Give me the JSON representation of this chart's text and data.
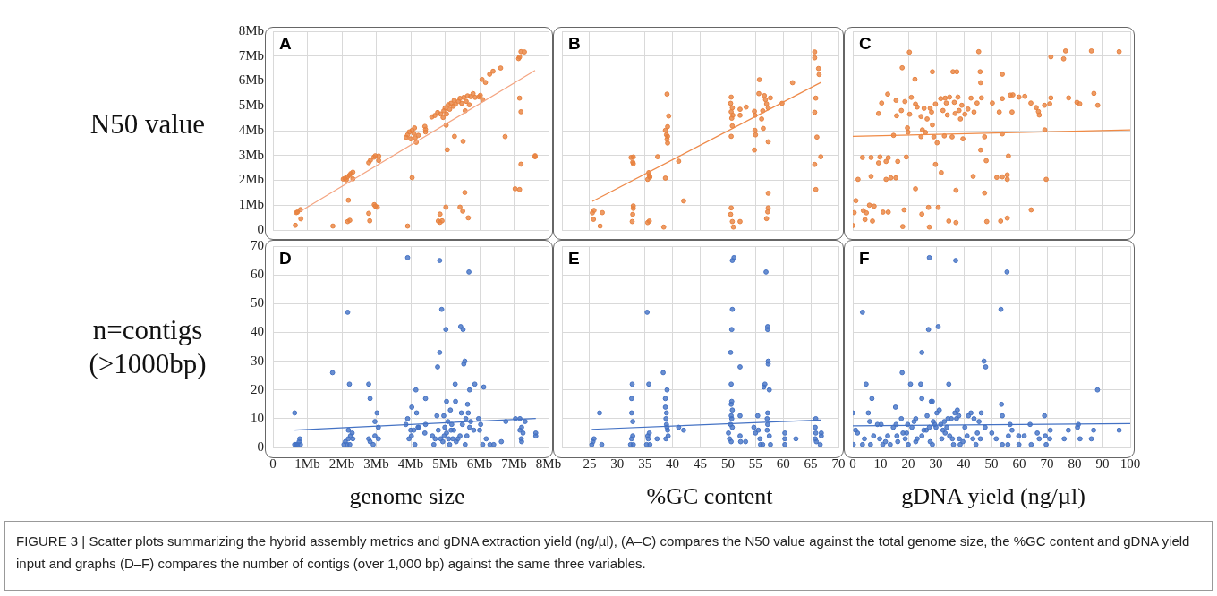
{
  "chart_data": [
    {
      "type": "scatter",
      "title": "A",
      "ylabel": "N50 value",
      "grid": true,
      "tick_labels": "y",
      "xlim": [
        0,
        8
      ],
      "xticks": [
        0,
        1,
        2,
        3,
        4,
        5,
        6,
        7,
        8
      ],
      "ylim": [
        0,
        8
      ],
      "yticks": [
        0,
        {
          "value": 1,
          "label": "1Mb"
        },
        {
          "value": 2,
          "label": "2Mb"
        },
        {
          "value": 3,
          "label": "3Mb"
        },
        {
          "value": 4,
          "label": "4Mb"
        },
        {
          "value": 5,
          "label": "5Mb"
        },
        {
          "value": 6,
          "label": "6Mb"
        },
        {
          "value": 7,
          "label": "7Mb"
        },
        {
          "value": 8,
          "label": "8Mb"
        }
      ],
      "annotations": [
        "FIGURE 3 | Scatter plots summarizing the hybrid assembly metrics and gDNA extraction yield (ng/µl), (A–C) compares the N50 value against the total genome size, the %GC content and gDNA yield input and graphs (D–F) compares the number of contigs (over 1,000 bp) against the same three variables."
      ],
      "series": [
        {
          "type": "scatter",
          "marker": "circle",
          "color": "#e8823f",
          "x": [
            0.65,
            0.68,
            0.71,
            0.8,
            0.81,
            1.74,
            2.04,
            2.09,
            2.13,
            2.16,
            2.22,
            2.26,
            2.32,
            2.32,
            2.19,
            2.17,
            2.23,
            2.78,
            2.81,
            2.78,
            2.83,
            2.93,
            2.97,
            3.07,
            3.07,
            2.94,
            2.97,
            3.03,
            3.91,
            3.87,
            3.91,
            3.96,
            4.0,
            4.04,
            4.09,
            4.11,
            4.13,
            4.16,
            4.22,
            4.04,
            4.41,
            4.43,
            4.43,
            4.61,
            4.7,
            4.78,
            4.87,
            4.96,
            4.94,
            5.0,
            5.04,
            5.09,
            5.13,
            5.17,
            5.23,
            5.26,
            5.3,
            5.39,
            5.43,
            5.48,
            5.54,
            5.61,
            5.65,
            5.7,
            5.74,
            5.81,
            5.87,
            5.98,
            6.02,
            6.09,
            6.07,
            6.17,
            6.29,
            6.39,
            6.61,
            7.13,
            7.16,
            7.2,
            7.3,
            7.16,
            7.2,
            7.2,
            7.16,
            7.03,
            7.61,
            7.61,
            6.74,
            5.06,
            5.27,
            5.52,
            5.58,
            5.03,
            5.02,
            5.43,
            5.51,
            5.57,
            5.67,
            4.85,
            4.8,
            4.85,
            4.91
          ],
          "values": [
            0.19,
            0.7,
            0.72,
            0.82,
            0.45,
            0.16,
            2.05,
            2.08,
            2.02,
            2.14,
            2.2,
            2.27,
            2.33,
            2.06,
            1.2,
            0.34,
            0.39,
            0.67,
            0.37,
            2.71,
            2.81,
            2.93,
            2.99,
            2.98,
            2.8,
            1.02,
            0.96,
            0.92,
            0.16,
            3.73,
            3.83,
            3.95,
            3.67,
            4.01,
            3.89,
            4.11,
            3.71,
            3.53,
            3.81,
            2.11,
            4.17,
            3.95,
            4.05,
            4.55,
            4.61,
            4.73,
            4.67,
            4.8,
            4.53,
            4.92,
            4.67,
            5.04,
            4.86,
            5.1,
            4.98,
            5.22,
            5.06,
            5.18,
            5.3,
            5.1,
            5.34,
            5.18,
            5.4,
            5.04,
            5.37,
            5.49,
            5.34,
            5.36,
            5.42,
            5.25,
            6.06,
            5.94,
            6.27,
            6.39,
            6.52,
            6.9,
            6.96,
            7.18,
            7.17,
            5.31,
            4.76,
            2.65,
            1.63,
            1.66,
            2.99,
            2.95,
            3.76,
            3.23,
            3.77,
            3.57,
            4.8,
            4.22,
            0.92,
            0.92,
            0.76,
            1.51,
            0.49,
            0.64,
            0.36,
            0.31,
            0.37
          ]
        },
        {
          "type": "line",
          "color": "#f4a582",
          "x": [
            0.8,
            7.61
          ],
          "values": [
            0.76,
            6.42
          ]
        }
      ]
    },
    {
      "type": "scatter",
      "title": "B",
      "grid": true,
      "tick_labels": false,
      "xlim": [
        20,
        70
      ],
      "xticks": [
        25,
        30,
        35,
        40,
        45,
        50,
        55,
        60,
        65,
        70
      ],
      "ylim": [
        0,
        8
      ],
      "yticks": [
        0,
        1,
        2,
        3,
        4,
        5,
        6,
        7,
        8
      ],
      "series": [
        {
          "type": "scatter",
          "marker": "circle",
          "color": "#e8823f",
          "x": [
            25.5,
            25.8,
            25.7,
            26.9,
            27.3,
            32.5,
            32.9,
            32.8,
            32.9,
            32.9,
            32.9,
            32.8,
            32.7,
            35.5,
            35.8,
            35.7,
            35.8,
            35.5,
            35.9,
            37.3,
            38.4,
            38.7,
            39.0,
            39.3,
            39.1,
            38.7,
            38.9,
            39.1,
            39.0,
            39.1,
            41.1,
            42.0,
            50.6,
            50.5,
            50.8,
            50.6,
            50.9,
            50.7,
            50.8,
            50.6,
            52.2,
            52.2,
            53.3,
            54.8,
            54.9,
            55.7,
            55.6,
            56.6,
            56.8,
            57.0,
            57.3,
            57.7,
            56.1,
            56.3,
            54.9,
            55.0,
            56.4,
            54.8,
            57.3,
            59.8,
            61.7,
            65.7,
            65.7,
            66.4,
            66.5,
            65.9,
            65.7,
            66.1,
            66.8,
            65.7,
            65.9,
            50.6,
            50.5,
            50.8,
            51.0,
            52.2,
            57.3,
            57.3,
            57.2,
            57.0
          ],
          "values": [
            0.69,
            0.79,
            0.43,
            0.16,
            0.7,
            2.92,
            2.94,
            2.73,
            2.67,
            0.97,
            0.87,
            0.63,
            0.34,
            0.3,
            0.36,
            2.31,
            2.19,
            2.04,
            2.13,
            2.95,
            0.12,
            2.09,
            5.47,
            4.59,
            4.16,
            4.01,
            3.83,
            3.77,
            3.65,
            3.5,
            2.77,
            1.17,
            5.35,
            5.1,
            4.92,
            4.76,
            4.62,
            4.5,
            4.19,
            3.77,
            4.86,
            4.62,
            4.95,
            4.78,
            4.62,
            6.05,
            5.49,
            5.41,
            5.25,
            5.08,
            4.92,
            5.32,
            4.47,
            4.8,
            4.01,
            3.83,
            4.09,
            3.22,
            3.55,
            5.1,
            5.93,
            7.17,
            6.93,
            6.5,
            6.26,
            5.31,
            4.74,
            3.74,
            2.95,
            2.64,
            1.63,
            0.89,
            0.63,
            0.34,
            0.12,
            0.34,
            1.48,
            0.89,
            0.73,
            0.46
          ]
        },
        {
          "type": "line",
          "color": "#ee8a4a",
          "x": [
            25.5,
            66.9
          ],
          "values": [
            1.15,
            5.95
          ]
        }
      ]
    },
    {
      "type": "scatter",
      "title": "C",
      "grid": true,
      "tick_labels": false,
      "xlim": [
        0,
        100
      ],
      "xticks": [
        0,
        10,
        20,
        30,
        40,
        50,
        60,
        70,
        80,
        90,
        100
      ],
      "ylim": [
        0,
        8
      ],
      "yticks": [
        0,
        1,
        2,
        3,
        4,
        5,
        6,
        7,
        8
      ],
      "series": [
        {
          "type": "scatter",
          "marker": "circle",
          "color": "#e8823f",
          "x": [
            0,
            0.5,
            1.1,
            1.9,
            3.5,
            3.8,
            4.4,
            4.9,
            6.0,
            6.6,
            6.6,
            7.1,
            7.7,
            9.3,
            9.3,
            9.8,
            10.4,
            10.9,
            12.0,
            12.0,
            12.6,
            12.8,
            12.8,
            13.7,
            15.5,
            15.8,
            15.6,
            16.2,
            14.7,
            17.5,
            17.8,
            18.0,
            18.5,
            18.8,
            19.3,
            19.7,
            19.9,
            20.4,
            20.5,
            21.1,
            22.4,
            22.6,
            22.6,
            23.2,
            24.6,
            24.6,
            24.9,
            25.1,
            25.7,
            26.2,
            26.8,
            27.3,
            27.6,
            27.9,
            28.4,
            28.7,
            28.7,
            29.2,
            29.8,
            29.8,
            30.4,
            30.8,
            31.7,
            31.9,
            32.5,
            33.0,
            33.3,
            33.7,
            34.1,
            34.6,
            34.9,
            35.8,
            36.1,
            36.6,
            36.9,
            37.2,
            37.2,
            37.5,
            37.9,
            38.3,
            38.8,
            39.3,
            39.7,
            40.4,
            41.5,
            42.6,
            43.4,
            43.7,
            44.8,
            45.4,
            45.9,
            46.1,
            46.1,
            46.4,
            47.5,
            47.5,
            48.1,
            48.3,
            50.3,
            51.9,
            52.8,
            53.3,
            53.9,
            53.9,
            53.9,
            53.9,
            55.7,
            55.7,
            55.7,
            56.1,
            56.8,
            57.7,
            57.4,
            59.9,
            62.0,
            64.2,
            64.3,
            66.1,
            66.9,
            67.2,
            69.1,
            69.2,
            69.7,
            71.0,
            71.4,
            71.4,
            76.0,
            76.7,
            77.8,
            80.8,
            81.8,
            86.0,
            86.9,
            88.3,
            96.0
          ],
          "values": [
            0.18,
            0.7,
            1.18,
            2.04,
            2.92,
            0.78,
            0.42,
            0.69,
            1.0,
            2.92,
            2.16,
            0.36,
            0.96,
            2.7,
            4.69,
            2.94,
            5.11,
            0.72,
            2.04,
            2.76,
            5.47,
            2.91,
            0.72,
            2.1,
            2.1,
            4.6,
            5.22,
            2.76,
            3.81,
            4.81,
            6.53,
            0.14,
            0.81,
            5.17,
            2.94,
            4.11,
            3.94,
            7.16,
            4.66,
            5.34,
            6.07,
            5.07,
            1.66,
            4.95,
            4.57,
            3.76,
            0.64,
            4.03,
            4.9,
            3.93,
            4.47,
            0.91,
            0.12,
            4.9,
            4.75,
            6.37,
            4.23,
            3.75,
            2.64,
            5.07,
            3.51,
            0.91,
            5.29,
            2.31,
            4.81,
            3.79,
            5.31,
            5.11,
            4.63,
            0.36,
            5.35,
            3.75,
            6.37,
            5.14,
            4.69,
            1.6,
            0.3,
            6.37,
            5.35,
            4.81,
            4.47,
            5.02,
            3.67,
            4.66,
            4.87,
            5.31,
            2.16,
            4.75,
            5.11,
            7.18,
            6.37,
            5.93,
            3.22,
            5.32,
            3.75,
            1.49,
            2.79,
            0.34,
            5.11,
            2.12,
            4.75,
            0.36,
            6.27,
            5.29,
            3.87,
            2.14,
            0.48,
            2.22,
            2.04,
            2.98,
            5.43,
            5.44,
            4.75,
            5.35,
            5.38,
            5.11,
            0.81,
            4.93,
            4.77,
            4.63,
            5.02,
            4.03,
            2.04,
            5.08,
            5.32,
            6.97,
            6.89,
            7.21,
            5.32,
            5.14,
            5.08,
            7.21,
            5.5,
            5.02,
            7.18
          ]
        },
        {
          "type": "line",
          "color": "#f08a45",
          "x": [
            0,
            100
          ],
          "values": [
            3.77,
            4.03
          ]
        }
      ]
    },
    {
      "type": "scatter",
      "title": "D",
      "ylabel": "n=contigs (>1000bp)",
      "xlabel": "genome size",
      "grid": true,
      "xlim": [
        0,
        8
      ],
      "xticks": [
        0,
        {
          "value": 1,
          "label": "1Mb"
        },
        {
          "value": 2,
          "label": "2Mb"
        },
        {
          "value": 3,
          "label": "3Mb"
        },
        {
          "value": 4,
          "label": "4Mb"
        },
        {
          "value": 5,
          "label": "5Mb"
        },
        {
          "value": 6,
          "label": "6Mb"
        },
        {
          "value": 7,
          "label": "7Mb"
        },
        {
          "value": 8,
          "label": "8Mb"
        }
      ],
      "ylim": [
        0,
        70
      ],
      "yticks": [
        0,
        10,
        20,
        30,
        40,
        50,
        60,
        70
      ],
      "series": [
        {
          "type": "scatter",
          "marker": "circle",
          "color": "#4472c4",
          "x": [
            0.63,
            0.63,
            0.67,
            0.71,
            0.76,
            0.78,
            0.8,
            1.73,
            2.06,
            2.1,
            2.15,
            2.17,
            2.19,
            2.19,
            2.22,
            2.23,
            2.25,
            2.3,
            2.32,
            2.78,
            2.82,
            2.78,
            2.82,
            2.91,
            2.96,
            2.96,
            3.02,
            3.06,
            3.06,
            3.86,
            3.91,
            3.91,
            3.95,
            4.02,
            4.03,
            4.0,
            4.09,
            4.12,
            4.15,
            4.17,
            4.21,
            4.23,
            4.43,
            4.43,
            4.41,
            4.63,
            4.67,
            4.71,
            4.76,
            4.78,
            4.8,
            4.84,
            4.84,
            4.87,
            4.9,
            4.93,
            4.96,
            4.97,
            4.99,
            5.02,
            5.04,
            5.04,
            5.08,
            5.1,
            5.13,
            5.15,
            5.17,
            5.19,
            5.22,
            5.25,
            5.29,
            5.3,
            5.32,
            5.37,
            5.43,
            5.45,
            5.47,
            5.5,
            5.52,
            5.54,
            5.57,
            5.58,
            5.6,
            5.63,
            5.65,
            5.67,
            5.69,
            5.71,
            5.71,
            5.74,
            5.83,
            5.86,
            5.97,
            6.0,
            6.03,
            6.09,
            6.12,
            6.19,
            6.3,
            6.41,
            6.63,
            6.76,
            7.04,
            7.17,
            7.17,
            7.21,
            7.22,
            7.22,
            7.26,
            7.32,
            7.63,
            7.63
          ],
          "values": [
            12,
            1,
            1,
            1,
            2,
            3,
            1,
            26,
            1,
            2,
            1,
            47,
            6,
            3,
            22,
            1,
            4,
            5,
            3,
            22,
            17,
            3,
            2,
            1,
            9,
            4,
            12,
            7,
            3,
            8,
            10,
            66,
            3,
            4,
            14,
            6,
            6,
            1,
            20,
            12,
            7,
            7,
            17,
            8,
            5,
            4,
            1,
            3,
            11,
            28,
            6,
            65,
            33,
            3,
            48,
            2,
            11,
            4,
            7,
            41,
            16,
            5,
            9,
            3,
            1,
            13,
            6,
            8,
            3,
            6,
            22,
            16,
            2,
            3,
            4,
            42,
            12,
            8,
            41,
            29,
            30,
            1,
            10,
            4,
            15,
            12,
            61,
            20,
            7,
            9,
            6,
            22,
            10,
            6,
            8,
            1,
            21,
            3,
            1,
            1,
            2,
            9,
            10,
            10,
            6,
            3,
            7,
            2,
            5,
            9,
            5,
            4
          ]
        },
        {
          "type": "line",
          "color": "#4472c4",
          "x": [
            0.63,
            7.63
          ],
          "values": [
            6,
            10.1
          ]
        }
      ]
    },
    {
      "type": "scatter",
      "title": "E",
      "xlabel": "%GC content",
      "grid": true,
      "tick_labels": "x",
      "xlim": [
        20,
        70
      ],
      "xticks": [
        25,
        30,
        35,
        40,
        45,
        50,
        55,
        60,
        65,
        70
      ],
      "ylim": [
        0,
        70
      ],
      "yticks": [
        0,
        10,
        20,
        30,
        40,
        50,
        60,
        70
      ],
      "series": [
        {
          "type": "scatter",
          "marker": "circle",
          "color": "#4472c4",
          "x": [
            25.4,
            25.6,
            25.8,
            26.8,
            27.2,
            32.4,
            32.6,
            32.8,
            32.6,
            32.8,
            32.6,
            32.7,
            32.9,
            35.4,
            35.7,
            35.3,
            35.6,
            35.8,
            35.5,
            35.9,
            37.2,
            38.3,
            39.0,
            38.7,
            38.7,
            38.9,
            38.8,
            38.9,
            39.0,
            39.1,
            38.8,
            39.2,
            41.1,
            42.0,
            50.8,
            51.1,
            50.8,
            50.7,
            50.5,
            50.6,
            50.7,
            50.6,
            50.8,
            50.6,
            50.7,
            50.5,
            50.8,
            50.1,
            50.3,
            50.6,
            52.2,
            52.2,
            52.2,
            52.3,
            53.2,
            54.7,
            55.0,
            55.4,
            55.5,
            55.8,
            55.9,
            56.3,
            56.5,
            56.7,
            56.9,
            57.2,
            57.2,
            57.3,
            57.3,
            57.5,
            57.2,
            57.1,
            57.2,
            57.1,
            57.5,
            57.7,
            60.3,
            60.3,
            60.3,
            62.3,
            65.9,
            65.8,
            65.9,
            65.8,
            66.0,
            66.7,
            66.9,
            66.9
          ],
          "values": [
            1,
            2,
            3,
            12,
            1,
            1,
            3,
            4,
            12,
            9,
            17,
            22,
            1,
            47,
            22,
            1,
            3,
            5,
            4,
            1,
            3,
            26,
            20,
            17,
            14,
            12,
            10,
            8,
            7,
            6,
            3,
            4,
            7,
            6,
            65,
            66,
            48,
            41,
            33,
            22,
            16,
            15,
            13,
            11,
            10,
            8,
            7,
            5,
            3,
            2,
            28,
            11,
            4,
            2,
            2,
            7,
            5,
            11,
            6,
            3,
            1,
            1,
            21,
            22,
            61,
            42,
            41,
            30,
            29,
            20,
            12,
            10,
            8,
            6,
            4,
            1,
            5,
            3,
            1,
            3,
            10,
            7,
            5,
            3,
            2,
            1,
            5,
            4
          ]
        },
        {
          "type": "line",
          "color": "#4472c4",
          "x": [
            25.4,
            66.8
          ],
          "values": [
            6.3,
            9.5
          ]
        }
      ]
    },
    {
      "type": "scatter",
      "title": "F",
      "xlabel": "gDNA yield (ng/µl)",
      "grid": true,
      "tick_labels": "x",
      "xlim": [
        0,
        100
      ],
      "xticks": [
        0,
        10,
        20,
        30,
        40,
        50,
        60,
        70,
        80,
        90,
        100
      ],
      "ylim": [
        0,
        70
      ],
      "yticks": [
        0,
        10,
        20,
        30,
        40,
        50,
        60,
        70
      ],
      "series": [
        {
          "type": "scatter",
          "marker": "circle",
          "color": "#4472c4",
          "x": [
            0,
            0.2,
            1.0,
            1.7,
            3.5,
            3.5,
            4.2,
            4.8,
            5.6,
            6.1,
            6.4,
            6.9,
            7.5,
            8.9,
            9.7,
            10.2,
            10.8,
            11.8,
            12.6,
            13.5,
            14.6,
            15.4,
            15.6,
            15.9,
            16.2,
            17.5,
            17.8,
            18.1,
            18.9,
            19.4,
            19.8,
            20.0,
            20.8,
            21.3,
            22.1,
            22.7,
            22.7,
            23.2,
            24.5,
            24.9,
            24.9,
            24.9,
            25.6,
            26.5,
            26.8,
            27.3,
            27.6,
            27.6,
            27.9,
            28.3,
            28.7,
            28.7,
            29.0,
            29.5,
            30.0,
            30.3,
            30.8,
            31.2,
            31.7,
            32.1,
            32.5,
            33.0,
            33.3,
            33.9,
            34.3,
            34.6,
            34.9,
            35.5,
            35.9,
            36.3,
            36.8,
            37.1,
            37.4,
            37.7,
            38.2,
            38.4,
            38.7,
            39.7,
            40.4,
            41.2,
            41.7,
            42.6,
            43.3,
            43.7,
            44.4,
            44.9,
            45.5,
            46.0,
            46.3,
            47.3,
            47.9,
            47.7,
            50.1,
            51.7,
            53.4,
            53.6,
            53.9,
            53.9,
            55.6,
            55.9,
            56.1,
            56.7,
            57.4,
            59.8,
            59.9,
            61.8,
            63.9,
            64.3,
            66.5,
            67.2,
            69.1,
            69.4,
            69.7,
            71.0,
            71.2,
            76.2,
            77.7,
            81.0,
            81.3,
            81.9,
            86.0,
            86.8,
            88.2,
            96.0
          ],
          "values": [
            12,
            1,
            6,
            5,
            47,
            1,
            3,
            22,
            12,
            9,
            1,
            17,
            4,
            8,
            3,
            8,
            1,
            2,
            4,
            1,
            7,
            14,
            8,
            4,
            2,
            10,
            26,
            5,
            3,
            5,
            8,
            1,
            22,
            7,
            9,
            10,
            2,
            3,
            22,
            33,
            17,
            4,
            6,
            6,
            11,
            41,
            66,
            7,
            2,
            16,
            16,
            1,
            9,
            8,
            7,
            12,
            42,
            13,
            8,
            3,
            6,
            9,
            5,
            7,
            10,
            22,
            4,
            10,
            3,
            1,
            12,
            65,
            10,
            13,
            11,
            3,
            1,
            2,
            7,
            4,
            11,
            12,
            3,
            10,
            1,
            5,
            9,
            3,
            12,
            30,
            28,
            7,
            5,
            3,
            48,
            15,
            11,
            1,
            61,
            1,
            4,
            8,
            6,
            4,
            1,
            4,
            8,
            1,
            5,
            3,
            11,
            4,
            1,
            3,
            6,
            3,
            6,
            7,
            8,
            3,
            3,
            6,
            20,
            6
          ]
        },
        {
          "type": "line",
          "color": "#4472c4",
          "x": [
            0,
            100
          ],
          "values": [
            7.5,
            8.3
          ]
        }
      ]
    }
  ]
}
